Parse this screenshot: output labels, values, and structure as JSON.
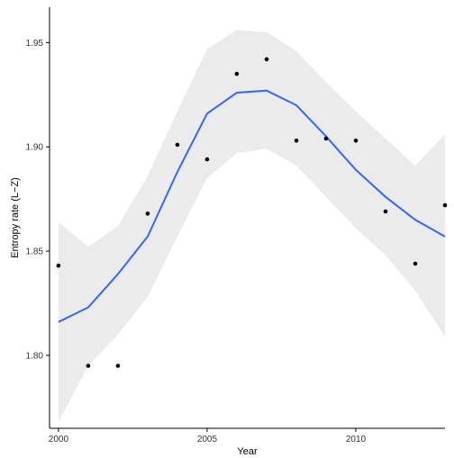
{
  "chart_data": {
    "type": "scatter",
    "xlabel": "Year",
    "ylabel": "Entropy rate (L−Z)",
    "xlim": [
      1999.7,
      2013.0
    ],
    "ylim": [
      1.765,
      1.967
    ],
    "x_ticks": [
      2000,
      2005,
      2010
    ],
    "y_ticks": [
      1.8,
      1.85,
      1.9,
      1.95
    ],
    "x_tick_labels": [
      "2000",
      "2005",
      "2010"
    ],
    "y_tick_labels": [
      "1.80",
      "1.85",
      "1.90",
      "1.95"
    ],
    "grid": false,
    "points": [
      {
        "x": 2000,
        "y": 1.843
      },
      {
        "x": 2001,
        "y": 1.795
      },
      {
        "x": 2002,
        "y": 1.795
      },
      {
        "x": 2003,
        "y": 1.868
      },
      {
        "x": 2004,
        "y": 1.901
      },
      {
        "x": 2005,
        "y": 1.894
      },
      {
        "x": 2006,
        "y": 1.935
      },
      {
        "x": 2007,
        "y": 1.942
      },
      {
        "x": 2008,
        "y": 1.903
      },
      {
        "x": 2009,
        "y": 1.904
      },
      {
        "x": 2010,
        "y": 1.903
      },
      {
        "x": 2011,
        "y": 1.869
      },
      {
        "x": 2012,
        "y": 1.844
      },
      {
        "x": 2013,
        "y": 1.872
      }
    ],
    "smooth": {
      "x": [
        2000,
        2001,
        2002,
        2003,
        2004,
        2005,
        2006,
        2007,
        2008,
        2009,
        2010,
        2011,
        2012,
        2013
      ],
      "y": [
        1.816,
        1.823,
        1.839,
        1.857,
        1.888,
        1.916,
        1.926,
        1.927,
        1.92,
        1.905,
        1.889,
        1.876,
        1.865,
        1.857
      ],
      "lower": [
        1.768,
        1.795,
        1.81,
        1.828,
        1.857,
        1.885,
        1.897,
        1.899,
        1.891,
        1.876,
        1.861,
        1.848,
        1.831,
        1.809
      ],
      "upper": [
        1.864,
        1.852,
        1.862,
        1.886,
        1.917,
        1.947,
        1.956,
        1.955,
        1.946,
        1.931,
        1.917,
        1.904,
        1.891,
        1.906
      ]
    },
    "colors": {
      "line": "#3366FF",
      "ribbon": "#EBEBEB",
      "points": "#000000",
      "axis": "#000000"
    }
  }
}
